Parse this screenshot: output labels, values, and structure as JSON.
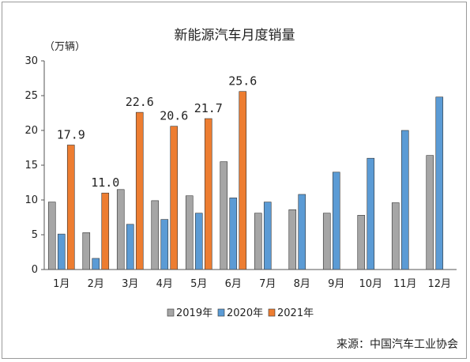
{
  "chart_data": {
    "type": "bar",
    "title": "新能源汽车月度销量",
    "unit_label": "（万辆）",
    "categories": [
      "1月",
      "2月",
      "3月",
      "4月",
      "5月",
      "6月",
      "7月",
      "8月",
      "9月",
      "10月",
      "11月",
      "12月"
    ],
    "series": [
      {
        "name": "2019年",
        "color": "#a6a6a6",
        "values": [
          9.7,
          5.3,
          11.5,
          9.9,
          10.6,
          15.5,
          8.1,
          8.6,
          8.1,
          7.8,
          9.6,
          16.4
        ]
      },
      {
        "name": "2020年",
        "color": "#5b9bd5",
        "values": [
          5.1,
          1.6,
          6.5,
          7.2,
          8.1,
          10.3,
          9.7,
          10.8,
          14.0,
          16.0,
          20.0,
          24.8
        ]
      },
      {
        "name": "2021年",
        "color": "#ed7d31",
        "values": [
          17.9,
          11.0,
          22.6,
          20.6,
          21.7,
          25.6,
          null,
          null,
          null,
          null,
          null,
          null
        ]
      }
    ],
    "data_labels": [
      {
        "series": 2,
        "index": 0,
        "text": "17.9"
      },
      {
        "series": 2,
        "index": 1,
        "text": "11.0"
      },
      {
        "series": 2,
        "index": 2,
        "text": "22.6"
      },
      {
        "series": 2,
        "index": 3,
        "text": "20.6"
      },
      {
        "series": 2,
        "index": 4,
        "text": "21.7"
      },
      {
        "series": 2,
        "index": 5,
        "text": "25.6"
      }
    ],
    "yticks": [
      0,
      5,
      10,
      15,
      20,
      25,
      30
    ],
    "ylim": [
      0,
      30
    ],
    "grid": false,
    "legend_position": "bottom"
  },
  "source": "来源：中国汽车工业协会"
}
